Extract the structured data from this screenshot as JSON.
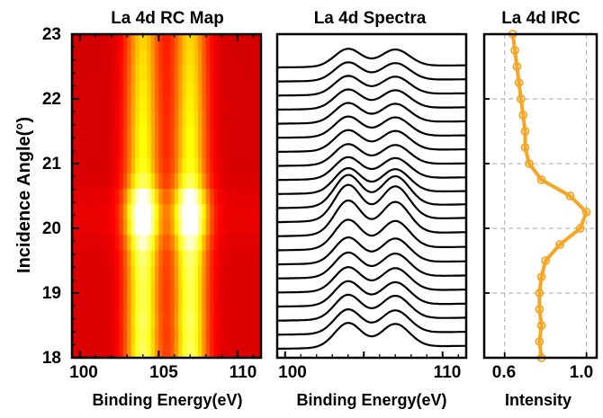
{
  "chart_data": [
    {
      "type": "heatmap",
      "title": "La 4d RC Map",
      "xlabel": "Binding Energy(eV)",
      "ylabel": "Incidence Angle(°)",
      "xlim": [
        99.5,
        111.5
      ],
      "ylim": [
        18,
        23
      ],
      "xticks": [
        "100",
        "105",
        "110"
      ],
      "yticks": [
        "18",
        "19",
        "20",
        "21",
        "22",
        "23"
      ],
      "colormap": "hot",
      "angles": [
        18.0,
        18.25,
        18.5,
        18.75,
        19.0,
        19.25,
        19.5,
        19.75,
        20.0,
        20.25,
        20.5,
        20.75,
        21.0,
        21.25,
        21.5,
        21.75,
        22.0,
        22.25,
        22.5,
        22.75,
        23.0
      ],
      "peaks": [
        {
          "center": 104.0,
          "width": 0.75
        },
        {
          "center": 107.0,
          "width": 0.75
        }
      ],
      "relative_intensity": [
        0.78,
        0.77,
        0.78,
        0.77,
        0.77,
        0.78,
        0.8,
        0.87,
        0.97,
        1.0,
        0.92,
        0.78,
        0.72,
        0.7,
        0.7,
        0.69,
        0.68,
        0.67,
        0.66,
        0.65,
        0.64
      ]
    },
    {
      "type": "line",
      "title": "La 4d Spectra",
      "xlabel": "Binding Energy(eV)",
      "xlim": [
        99.5,
        111.5
      ],
      "xticks": [
        "100",
        "110"
      ],
      "series_count": 21,
      "peak_centers": [
        104.0,
        107.0
      ],
      "description_of_stacking": "one spectrum per incidence angle, offset vertically"
    },
    {
      "type": "line",
      "title": "La 4d IRC",
      "xlabel": "Intensity",
      "xlim": [
        0.5,
        1.05
      ],
      "ylim": [
        18,
        23
      ],
      "xticks": [
        "0.6",
        "1.0"
      ],
      "grid": true,
      "color": "#F5A623",
      "x": [
        0.78,
        0.77,
        0.78,
        0.77,
        0.77,
        0.78,
        0.8,
        0.87,
        0.97,
        1.0,
        0.92,
        0.78,
        0.72,
        0.7,
        0.7,
        0.69,
        0.68,
        0.67,
        0.66,
        0.65,
        0.64
      ],
      "y": [
        18.0,
        18.25,
        18.5,
        18.75,
        19.0,
        19.25,
        19.5,
        19.75,
        20.0,
        20.25,
        20.5,
        20.75,
        21.0,
        21.25,
        21.5,
        21.75,
        22.0,
        22.25,
        22.5,
        22.75,
        23.0
      ]
    }
  ]
}
